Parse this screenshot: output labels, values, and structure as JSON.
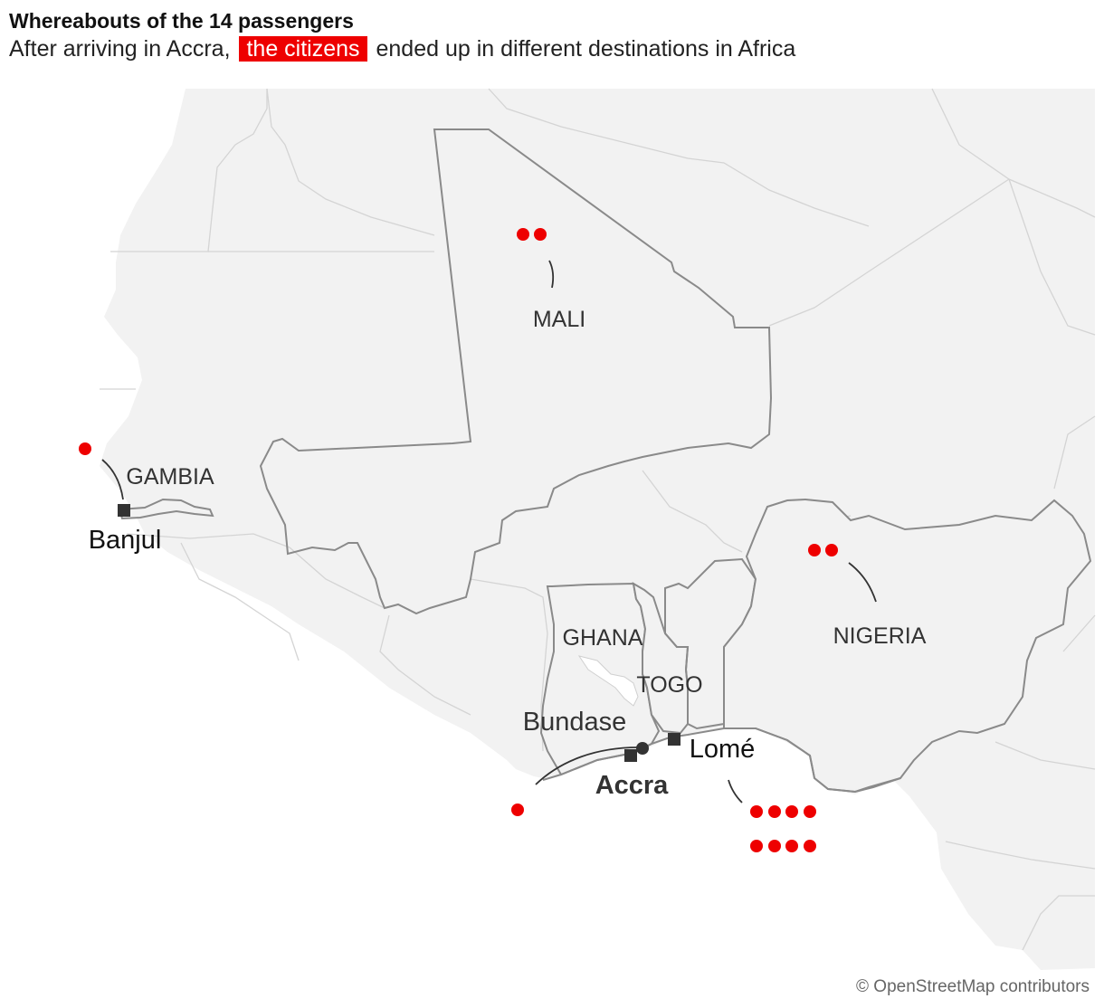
{
  "header": {
    "title": "Whereabouts of the 14 passengers",
    "subtitle_before": "After arriving in Accra,",
    "subtitle_highlight": "the citizens",
    "subtitle_after": "ended up in different destinations in Africa"
  },
  "colors": {
    "highlight": "#ee0000",
    "dot": "#ee0000",
    "land": "#f2f2f2",
    "featured_border": "#8a8a8a",
    "marker": "#333333"
  },
  "countries": {
    "mali": "MALI",
    "gambia": "GAMBIA",
    "ghana": "GHANA",
    "togo": "TOGO",
    "nigeria": "NIGERIA"
  },
  "places": {
    "banjul": "Banjul",
    "accra": "Accra",
    "lome": "Lomé",
    "bundase": "Bundase"
  },
  "destinations": [
    {
      "country": "Mali",
      "passengers": 2
    },
    {
      "country": "Gambia",
      "passengers": 1
    },
    {
      "country": "Nigeria",
      "passengers": 2
    },
    {
      "country": "Ghana",
      "passengers": 1
    },
    {
      "country": "Togo",
      "passengers": 8
    }
  ],
  "attribution": "© OpenStreetMap contributors"
}
